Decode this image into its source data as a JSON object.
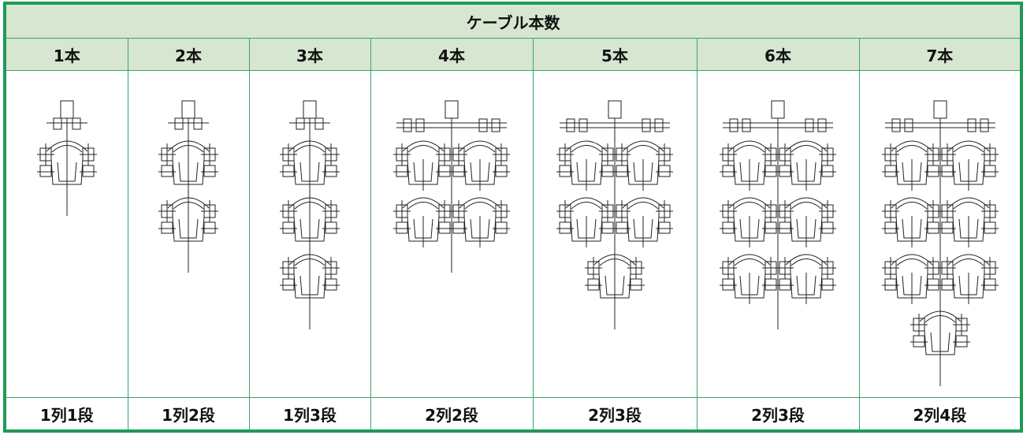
{
  "table": {
    "title": "ケーブル本数",
    "columns": [
      "1本",
      "2本",
      "3本",
      "4本",
      "5本",
      "6本",
      "7本"
    ],
    "footers": [
      "1列1段",
      "1列2段",
      "1列3段",
      "2列2段",
      "2列3段",
      "2列3段",
      "2列4段"
    ]
  }
}
